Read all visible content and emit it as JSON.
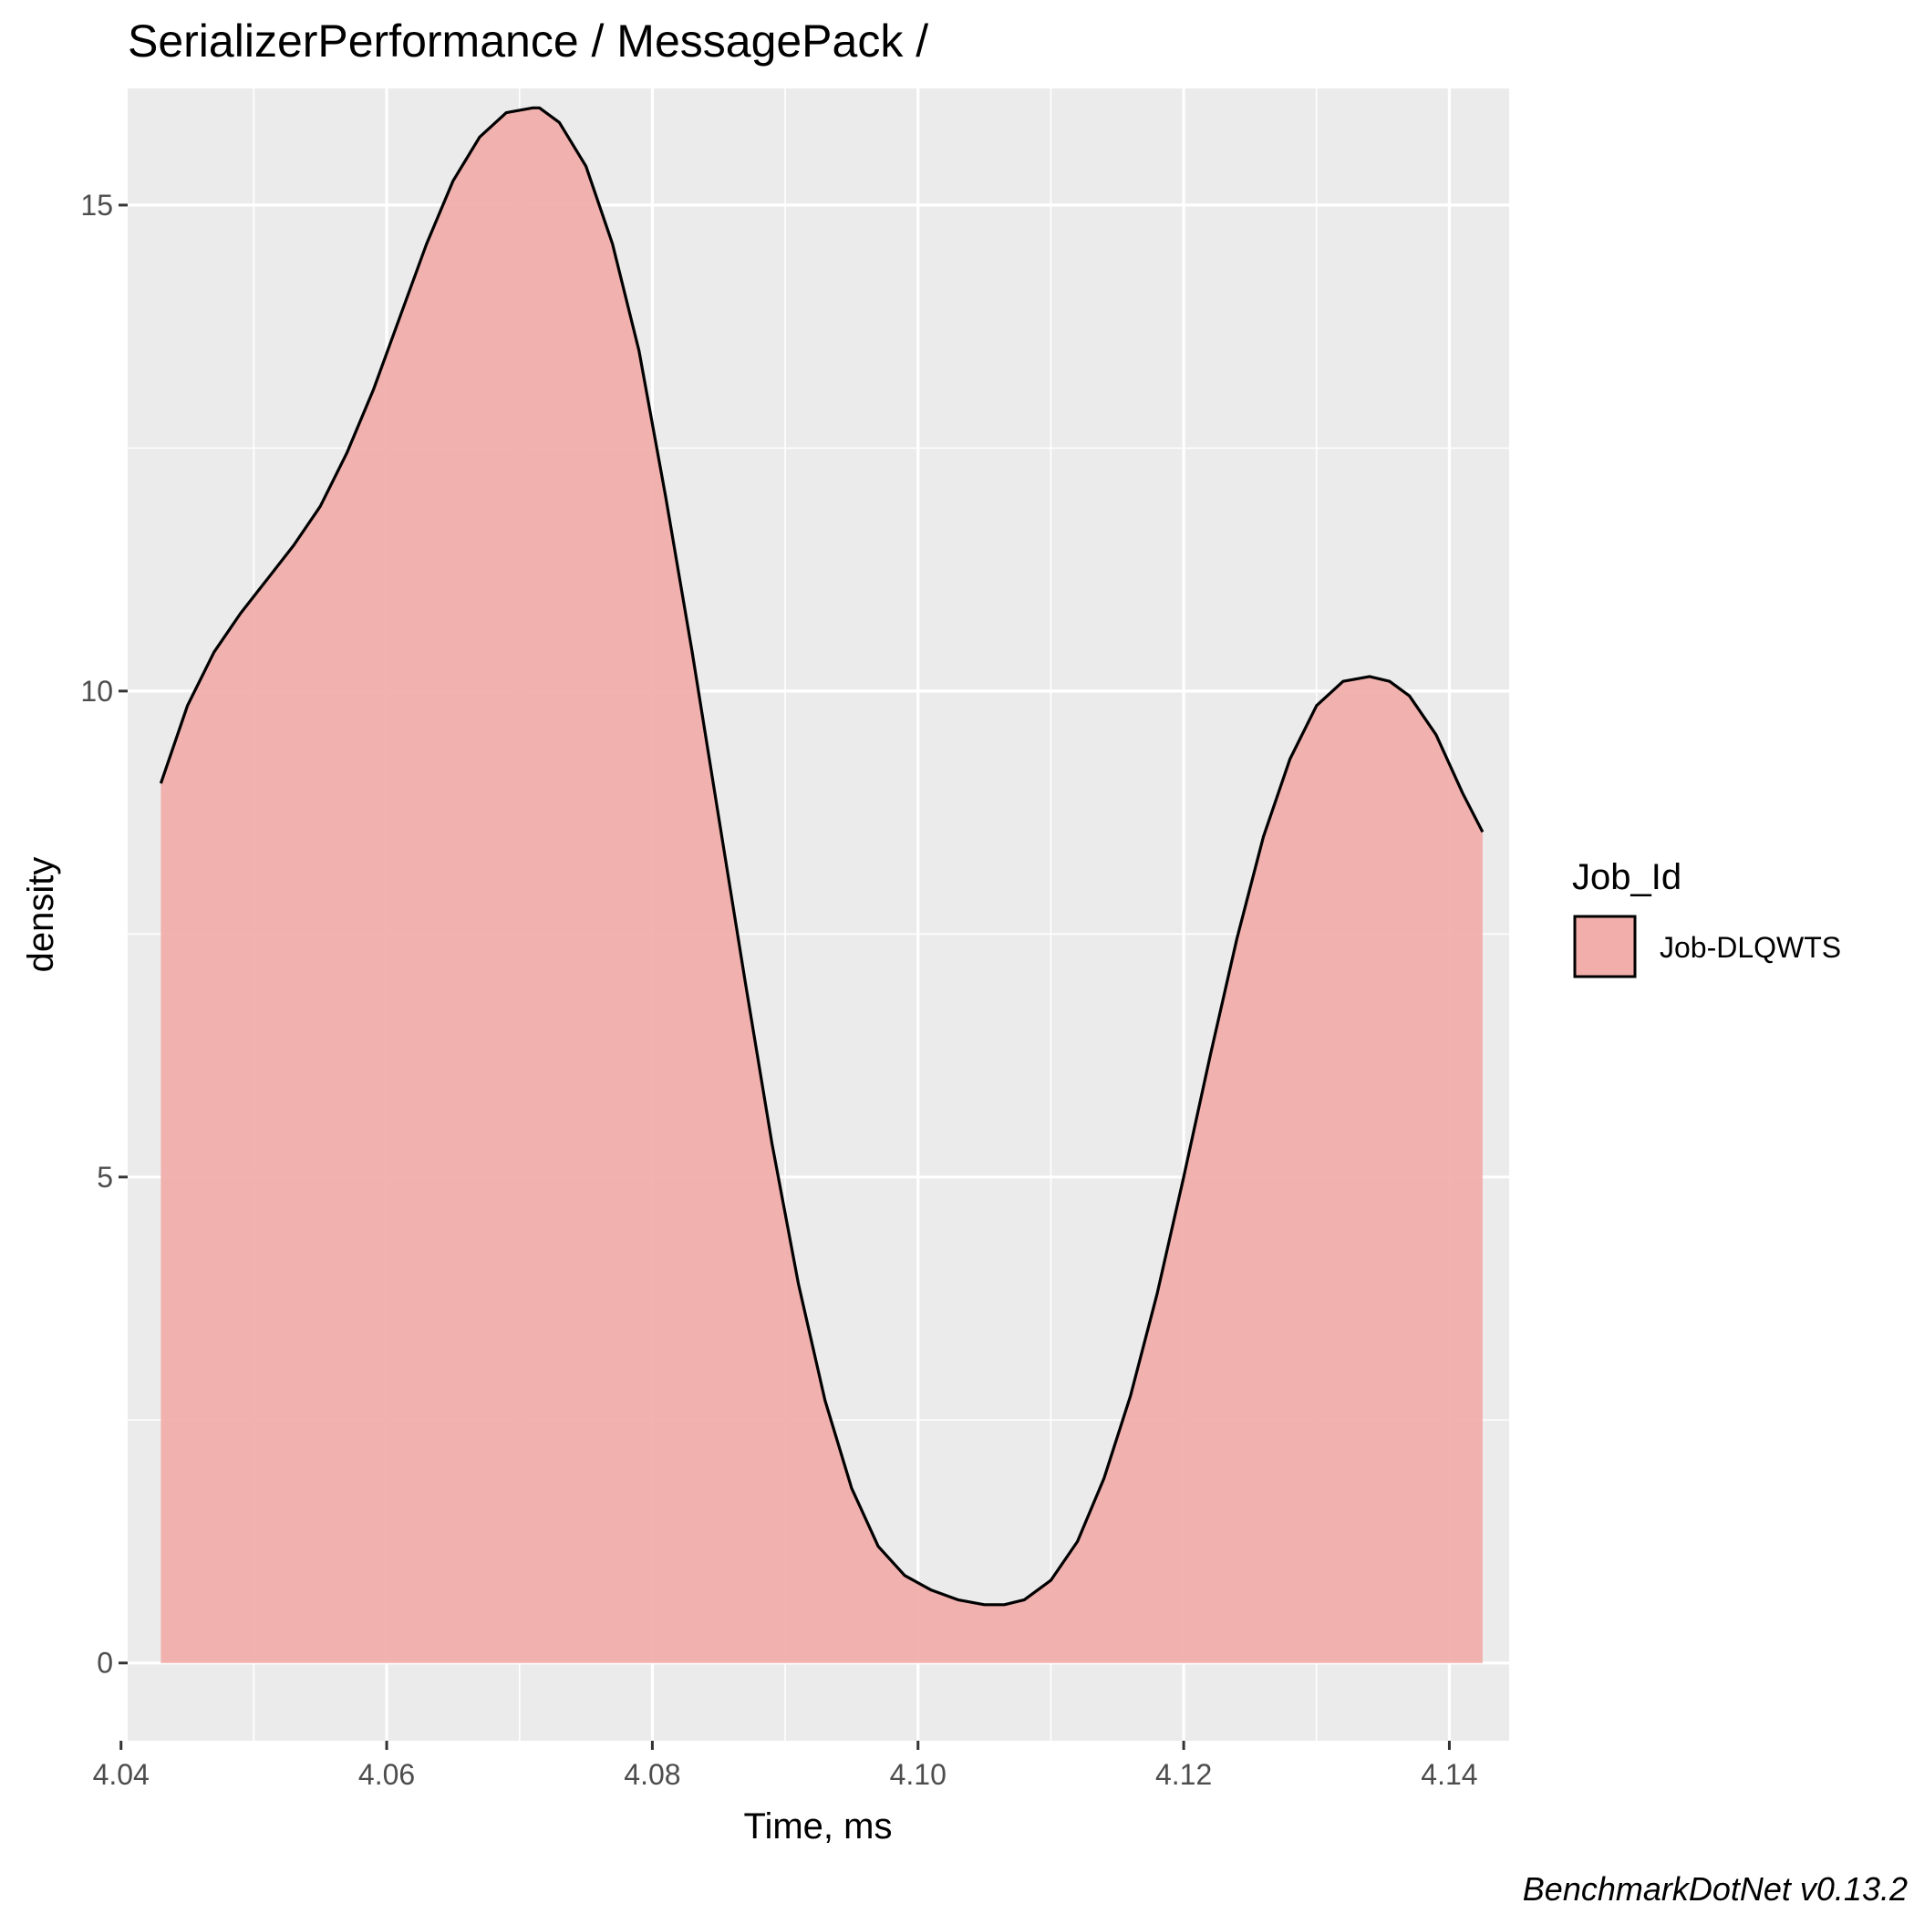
{
  "chart_data": {
    "type": "area",
    "title": "SerializerPerformance / MessagePack /",
    "xlabel": "Time, ms",
    "ylabel": "density",
    "xlim": [
      4.0405,
      4.1445
    ],
    "ylim": [
      -0.8,
      16.2
    ],
    "x_ticks": [
      "4.04",
      "4.06",
      "4.08",
      "4.10",
      "4.12",
      "4.14"
    ],
    "x_tick_values": [
      4.04,
      4.06,
      4.08,
      4.1,
      4.12,
      4.14
    ],
    "y_ticks": [
      "0",
      "5",
      "10",
      "15"
    ],
    "y_tick_values": [
      0,
      5,
      10,
      15
    ],
    "grid": true,
    "legend": {
      "title": "Job_Id",
      "placement": "right",
      "entries": [
        "Job-DLQWTS"
      ]
    },
    "series": [
      {
        "name": "Job-DLQWTS",
        "fill_color": "#f1aeab",
        "line_color": "#000000",
        "x": [
          4.043,
          4.045,
          4.047,
          4.049,
          4.051,
          4.053,
          4.055,
          4.057,
          4.059,
          4.061,
          4.063,
          4.065,
          4.067,
          4.069,
          4.071,
          4.0715,
          4.073,
          4.075,
          4.077,
          4.079,
          4.081,
          4.083,
          4.085,
          4.087,
          4.089,
          4.091,
          4.093,
          4.095,
          4.097,
          4.099,
          4.101,
          4.103,
          4.105,
          4.1065,
          4.108,
          4.11,
          4.112,
          4.114,
          4.116,
          4.118,
          4.12,
          4.122,
          4.124,
          4.126,
          4.128,
          4.13,
          4.132,
          4.134,
          4.1355,
          4.137,
          4.139,
          4.141,
          4.1425
        ],
        "y": [
          9.05,
          9.85,
          10.4,
          10.8,
          11.15,
          11.5,
          11.9,
          12.45,
          13.1,
          13.85,
          14.6,
          15.25,
          15.7,
          15.95,
          16.0,
          16.0,
          15.85,
          15.4,
          14.6,
          13.5,
          12.0,
          10.4,
          8.7,
          7.0,
          5.35,
          3.9,
          2.7,
          1.8,
          1.2,
          0.9,
          0.75,
          0.65,
          0.6,
          0.6,
          0.65,
          0.85,
          1.25,
          1.9,
          2.75,
          3.8,
          5.0,
          6.25,
          7.45,
          8.5,
          9.3,
          9.85,
          10.1,
          10.15,
          10.1,
          9.95,
          9.55,
          8.95,
          8.55
        ]
      }
    ],
    "caption": "BenchmarkDotNet v0.13.2"
  }
}
